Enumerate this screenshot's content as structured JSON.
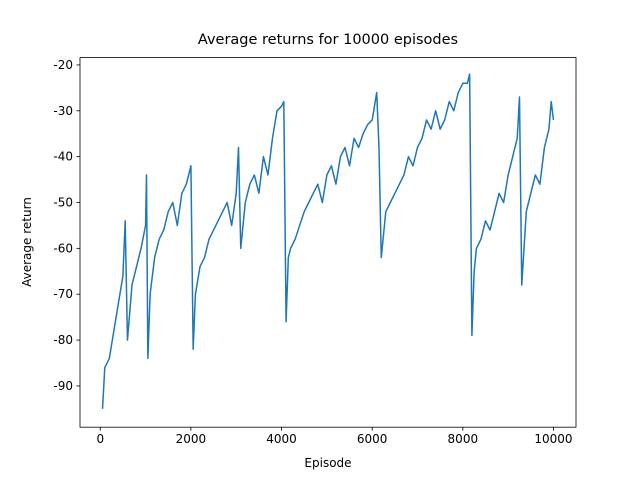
{
  "chart_data": {
    "type": "line",
    "title": "Average returns for 10000 episodes",
    "x_label": "Episode",
    "y_label": "Average return",
    "xlim": [
      -447,
      10497
    ],
    "ylim": [
      -99,
      -18.4
    ],
    "xticks": [
      0,
      2000,
      4000,
      6000,
      8000,
      10000
    ],
    "yticks": [
      -90,
      -80,
      -70,
      -60,
      -50,
      -40,
      -30,
      -20
    ],
    "color": "#1f77b4",
    "x": [
      50,
      100,
      200,
      300,
      400,
      500,
      550,
      600,
      700,
      800,
      900,
      1000,
      1020,
      1050,
      1100,
      1200,
      1300,
      1400,
      1500,
      1600,
      1700,
      1800,
      1900,
      2000,
      2050,
      2100,
      2200,
      2300,
      2400,
      2500,
      2600,
      2700,
      2800,
      2900,
      3000,
      3050,
      3100,
      3200,
      3300,
      3400,
      3500,
      3600,
      3700,
      3800,
      3900,
      4000,
      4050,
      4100,
      4150,
      4200,
      4300,
      4400,
      4500,
      4600,
      4700,
      4800,
      4900,
      5000,
      5100,
      5200,
      5300,
      5400,
      5500,
      5600,
      5700,
      5800,
      5900,
      6000,
      6100,
      6150,
      6200,
      6300,
      6400,
      6500,
      6600,
      6700,
      6800,
      6900,
      7000,
      7100,
      7200,
      7300,
      7400,
      7500,
      7600,
      7700,
      7800,
      7900,
      8000,
      8100,
      8150,
      8200,
      8250,
      8300,
      8400,
      8500,
      8600,
      8700,
      8800,
      8900,
      9000,
      9100,
      9200,
      9250,
      9300,
      9400,
      9500,
      9600,
      9700,
      9800,
      9900,
      9950,
      10000
    ],
    "values": [
      -95,
      -86,
      -84,
      -78,
      -72,
      -66,
      -54,
      -80,
      -68,
      -64,
      -60,
      -55,
      -44,
      -84,
      -70,
      -62,
      -58,
      -56,
      -52,
      -50,
      -55,
      -48,
      -46,
      -42,
      -82,
      -70,
      -64,
      -62,
      -58,
      -56,
      -54,
      -52,
      -50,
      -55,
      -48,
      -38,
      -60,
      -50,
      -46,
      -44,
      -48,
      -40,
      -44,
      -36,
      -30,
      -29,
      -28,
      -76,
      -62,
      -60,
      -58,
      -55,
      -52,
      -50,
      -48,
      -46,
      -50,
      -44,
      -42,
      -46,
      -40,
      -38,
      -42,
      -36,
      -38,
      -35,
      -33,
      -32,
      -26,
      -38,
      -62,
      -52,
      -50,
      -48,
      -46,
      -44,
      -40,
      -42,
      -38,
      -36,
      -32,
      -34,
      -30,
      -34,
      -32,
      -28,
      -30,
      -26,
      -24,
      -24,
      -22,
      -79,
      -65,
      -60,
      -58,
      -54,
      -56,
      -52,
      -48,
      -50,
      -44,
      -40,
      -36,
      -27,
      -68,
      -52,
      -48,
      -44,
      -46,
      -38,
      -34,
      -28,
      -32
    ]
  }
}
